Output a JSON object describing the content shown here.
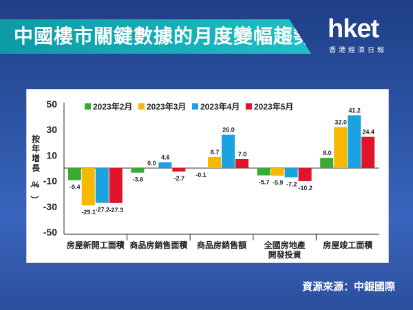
{
  "header": {
    "title": "中國樓市關鍵數據的月度變幅趨勢"
  },
  "logo": {
    "main": "hket",
    "sub": "香港經濟日報"
  },
  "source": "資源來源：中銀國際",
  "chart_data": {
    "type": "bar",
    "ylabel": "按年增長（%）",
    "ylim": [
      -50,
      50
    ],
    "yticks": [
      50,
      30,
      10,
      -10,
      -30,
      -50
    ],
    "grid": false,
    "legend_position": "top-left",
    "categories": [
      [
        "房屋新開工面積"
      ],
      [
        "商品房銷售面積"
      ],
      [
        "商品房銷售額"
      ],
      [
        "全國房地產",
        "開發投資"
      ],
      [
        "房屋竣工面積"
      ]
    ],
    "series": [
      {
        "name": "2023年2月",
        "color": "#3aaa35",
        "values": [
          -9.4,
          -3.6,
          -0.1,
          -5.7,
          8.0
        ]
      },
      {
        "name": "2023年3月",
        "color": "#f6b800",
        "values": [
          -29.1,
          0.0,
          8.7,
          -5.9,
          32.0
        ]
      },
      {
        "name": "2023年4月",
        "color": "#1aa3e0",
        "values": [
          -27.2,
          4.6,
          26.0,
          -7.2,
          41.2
        ]
      },
      {
        "name": "2023年5月",
        "color": "#e0142b",
        "values": [
          -27.3,
          -2.7,
          7.0,
          -10.2,
          24.4
        ]
      }
    ]
  }
}
